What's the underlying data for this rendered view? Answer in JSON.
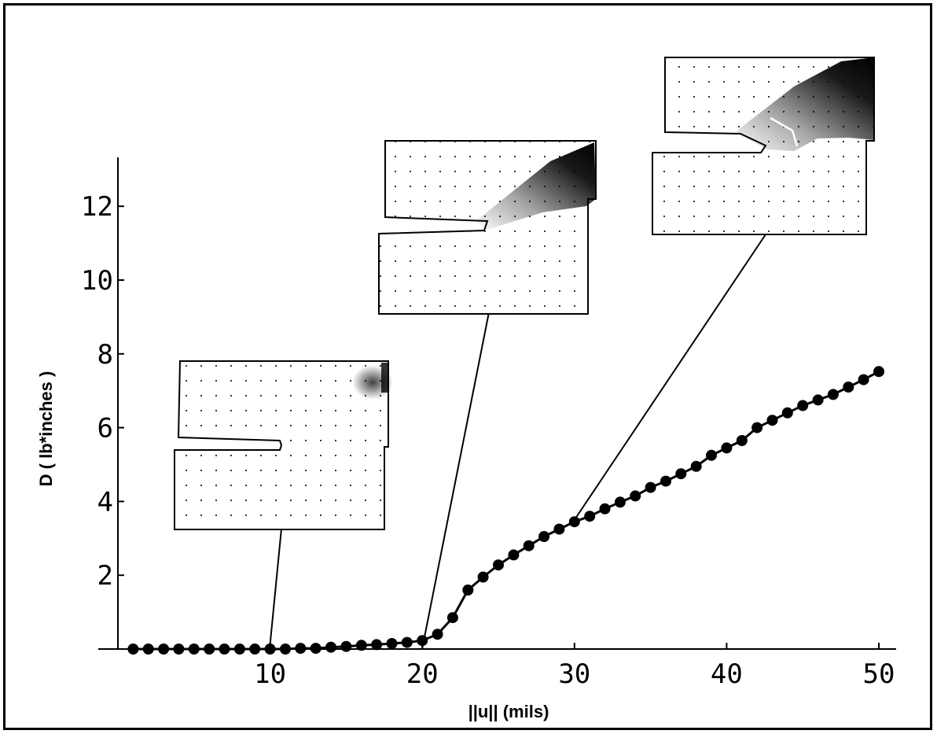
{
  "chart_data": {
    "type": "line",
    "title": "",
    "xlabel": "||u|| (mils)",
    "ylabel": "D ( lb*inches )",
    "xlim": [
      0,
      51
    ],
    "ylim": [
      0,
      13
    ],
    "x_ticks": [
      10,
      20,
      30,
      40,
      50
    ],
    "y_ticks": [
      2,
      4,
      6,
      8,
      10,
      12
    ],
    "grid": false,
    "legend": "none",
    "line_color": "#000000",
    "marker_color": "#000000",
    "series": [
      {
        "x": [
          1,
          2,
          3,
          4,
          5,
          6,
          7,
          8,
          9,
          10,
          11,
          12,
          13,
          14,
          15,
          16,
          17,
          18,
          19,
          20,
          21,
          22,
          23,
          24,
          25,
          26,
          27,
          28,
          29,
          30,
          31,
          32,
          33,
          34,
          35,
          36,
          37,
          38,
          39,
          40,
          41,
          42,
          43,
          44,
          45,
          46,
          47,
          48,
          49,
          50
        ],
        "values": [
          0,
          0,
          0,
          0,
          0,
          0,
          0,
          0,
          0,
          0,
          0,
          0.02,
          0.02,
          0.05,
          0.07,
          0.1,
          0.12,
          0.15,
          0.18,
          0.23,
          0.4,
          0.85,
          1.6,
          1.95,
          2.28,
          2.55,
          2.8,
          3.05,
          3.25,
          3.45,
          3.6,
          3.8,
          3.98,
          4.15,
          4.38,
          4.55,
          4.75,
          4.95,
          5.25,
          5.45,
          5.65,
          6.0,
          6.2,
          6.4,
          6.6,
          6.75,
          6.9,
          7.1,
          7.3,
          7.52
        ]
      }
    ],
    "insets": [
      {
        "name": "inset-specimen-1",
        "points_to": {
          "x": 10,
          "y": 0
        },
        "crack_growth": "none",
        "damage": "small"
      },
      {
        "name": "inset-specimen-2",
        "points_to": {
          "x": 20,
          "y": 0.23
        },
        "crack_growth": "initial",
        "damage": "band"
      },
      {
        "name": "inset-specimen-3",
        "points_to": {
          "x": 30,
          "y": 3.45
        },
        "crack_growth": "kinked",
        "damage": "large"
      }
    ]
  }
}
